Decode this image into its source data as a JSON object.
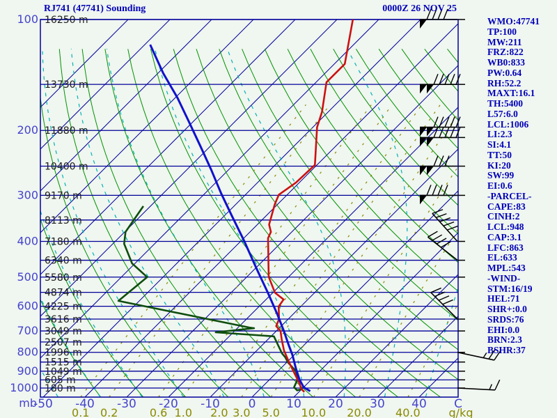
{
  "header": {
    "title": "RJ741 (47741) Sounding",
    "datetime": "0000Z 26 NOV 25"
  },
  "stats_panel": [
    "WMO:47741",
    "TP:100",
    "MW:211",
    "FRZ:822",
    "WB0:833",
    "PW:0.64",
    "RH:52.2",
    "MAXT:16.1",
    "TH:5400",
    "L57:6.0",
    "LCL:1006",
    "LI:2.3",
    "SI:4.1",
    "TT:50",
    "KI:20",
    "SW:99",
    "EI:0.6",
    "-PARCEL-",
    "CAPE:83",
    "CINH:2",
    "LCL:948",
    "CAP:3.1",
    "LFC:863",
    "EL:633",
    "MPL:543",
    "-WIND-",
    "STM:16/19",
    "HEL:71",
    "SHR+:0.0",
    "SRDS:76",
    "EHI:0.0",
    "BRN:2.3",
    "BSHR:37"
  ],
  "colors": {
    "background": "#f0f6f0",
    "isobar_isotherm": "#000099",
    "dry_adiabat": "#009300",
    "moist_adiabat": "#00b3b3",
    "mixing_ratio": "#8a8a00",
    "temperature_curve": "#cc1111",
    "dewpoint_curve": "#0e4d0e",
    "parcel_curve": "#1111cc",
    "wind_barb": "#000000",
    "axis_text": "#4444cc",
    "height_text": "#1b1b1b",
    "header_text": "#0000b8"
  },
  "chart_data": {
    "type": "skew-t-log-p",
    "title": "RJ741 (47741) Sounding",
    "datetime": "0000Z 26 NOV 25",
    "pressure_axis": {
      "unit": "mb",
      "ticks": [
        100,
        200,
        300,
        400,
        500,
        600,
        700,
        800,
        900,
        1000
      ],
      "isobar_lines": {
        "from": 100,
        "to": 1000,
        "step": 50
      },
      "range": [
        100,
        1056
      ]
    },
    "temperature_axis": {
      "unit": "C",
      "ticks": [
        -50,
        -40,
        -30,
        -20,
        -10,
        0,
        10,
        20,
        30,
        40
      ],
      "isotherms": {
        "from": -120,
        "to": 40,
        "step": 10
      }
    },
    "heights": [
      {
        "p": 100,
        "label": "16250 m"
      },
      {
        "p": 150,
        "label": "13730 m"
      },
      {
        "p": 200,
        "label": "11880 m"
      },
      {
        "p": 250,
        "label": "10400 m"
      },
      {
        "p": 300,
        "label": "9170 m"
      },
      {
        "p": 350,
        "label": "8113 m"
      },
      {
        "p": 400,
        "label": "7180 m"
      },
      {
        "p": 450,
        "label": "6340 m"
      },
      {
        "p": 500,
        "label": "5580 m"
      },
      {
        "p": 550,
        "label": "4874 m"
      },
      {
        "p": 600,
        "label": "4225 m"
      },
      {
        "p": 650,
        "label": "3616 m"
      },
      {
        "p": 700,
        "label": "3049 m"
      },
      {
        "p": 750,
        "label": "2507 m"
      },
      {
        "p": 800,
        "label": "1996 m"
      },
      {
        "p": 850,
        "label": "1515 m"
      },
      {
        "p": 900,
        "label": "1049 m"
      },
      {
        "p": 950,
        "label": "605 m"
      },
      {
        "p": 1000,
        "label": "180 m"
      }
    ],
    "mixing_ratio_lines": {
      "unit": "g/kg",
      "values": [
        0.1,
        0.2,
        0.6,
        1.0,
        2.0,
        3.0,
        5.0,
        10.0,
        20.0,
        40.0
      ],
      "labels": [
        "0.1",
        "0.2",
        "0.6",
        "1.0",
        "2.0",
        "3.0",
        "5.0",
        "10.0",
        "20.0",
        "40.0"
      ]
    },
    "dry_adiabats_theta_c": {
      "from": -40,
      "to": 240,
      "step": 10
    },
    "moist_adiabats_thetaw_c": {
      "from": -60,
      "to": 40,
      "step": 10
    },
    "temperature_profile": [
      [
        100,
        -66.2
      ],
      [
        132,
        -57.5
      ],
      [
        148,
        -57.5
      ],
      [
        178,
        -51.5
      ],
      [
        196,
        -49.0
      ],
      [
        248,
        -40.5
      ],
      [
        277,
        -40.8
      ],
      [
        299,
        -42.0
      ],
      [
        317,
        -40.7
      ],
      [
        360,
        -37.2
      ],
      [
        377,
        -35.0
      ],
      [
        392,
        -34.2
      ],
      [
        499,
        -24.8
      ],
      [
        551,
        -19.5
      ],
      [
        575,
        -15.8
      ],
      [
        601,
        -15.3
      ],
      [
        650,
        -12.2
      ],
      [
        679,
        -11.2
      ],
      [
        700,
        -9.0
      ],
      [
        738,
        -6.7
      ],
      [
        791,
        -3.5
      ],
      [
        851,
        0.5
      ],
      [
        916,
        4.7
      ],
      [
        970,
        8.0
      ],
      [
        1005,
        9.8
      ],
      [
        1025,
        11.3
      ]
    ],
    "dewpoint_profile": [
      [
        321,
        -71.7
      ],
      [
        377,
        -69.8
      ],
      [
        406,
        -67.3
      ],
      [
        459,
        -60.7
      ],
      [
        500,
        -53.8
      ],
      [
        580,
        -55.0
      ],
      [
        685,
        -17.3
      ],
      [
        688,
        -16.0
      ],
      [
        706,
        -24.2
      ],
      [
        724,
        -9.3
      ],
      [
        805,
        -3.3
      ],
      [
        826,
        -1.5
      ],
      [
        851,
        0.2
      ],
      [
        900,
        4.3
      ],
      [
        949,
        6.7
      ],
      [
        995,
        7.7
      ],
      [
        1015,
        9.2
      ],
      [
        1007,
        10.0
      ]
    ],
    "parcel_profile": [
      [
        117,
        -108.7
      ],
      [
        140,
        -98.7
      ],
      [
        163,
        -89.5
      ],
      [
        190,
        -80.8
      ],
      [
        221,
        -72.3
      ],
      [
        255,
        -64.3
      ],
      [
        296,
        -56.2
      ],
      [
        341,
        -48.2
      ],
      [
        397,
        -39.5
      ],
      [
        473,
        -29.8
      ],
      [
        551,
        -21.2
      ],
      [
        628,
        -14.0
      ],
      [
        700,
        -8.2
      ],
      [
        764,
        -3.7
      ],
      [
        815,
        -0.3
      ],
      [
        882,
        3.5
      ],
      [
        949,
        7.2
      ],
      [
        995,
        10.0
      ],
      [
        1020,
        12.5
      ]
    ],
    "winds": [
      {
        "p": 100,
        "pennants": 1,
        "full": 4,
        "half": 0,
        "angle": 0,
        "flip": false
      },
      {
        "p": 150,
        "pennants": 2,
        "full": 5,
        "half": 0,
        "angle": 0,
        "flip": false
      },
      {
        "p": 196,
        "pennants": 2,
        "full": 5,
        "half": 0,
        "angle": 0,
        "flip": false
      },
      {
        "p": 209,
        "pennants": 2,
        "full": 5,
        "half": 0,
        "angle": 0,
        "flip": false
      },
      {
        "p": 250,
        "pennants": 2,
        "full": 3,
        "half": 0,
        "angle": 0,
        "flip": false
      },
      {
        "p": 300,
        "pennants": 1,
        "full": 4,
        "half": 0,
        "angle": 0,
        "flip": false
      },
      {
        "p": 400,
        "pennants": 0,
        "full": 5,
        "half": 0,
        "angle": 48,
        "flip": false
      },
      {
        "p": 450,
        "pennants": 0,
        "full": 4,
        "half": 0,
        "angle": 38,
        "flip": false
      },
      {
        "p": 650,
        "pennants": 0,
        "full": 4,
        "half": 0,
        "angle": 45,
        "flip": false
      },
      {
        "p": 800,
        "pennants": 0,
        "full": 2,
        "half": 1,
        "angle": 12,
        "flip": true
      },
      {
        "p": 1000,
        "pennants": 0,
        "full": 1,
        "half": 1,
        "angle": 3,
        "flip": true
      }
    ],
    "right_axis_tick_pressures": [
      100,
      150,
      196,
      209,
      250,
      300,
      400,
      450,
      500,
      650,
      700,
      800,
      850,
      900,
      950,
      1000
    ],
    "axis_unit_labels": {
      "pressure": "mb",
      "temperature": "C",
      "mixing": "g/kg"
    },
    "layout_hints": {
      "grid": "on",
      "skew_deg": 45,
      "stats_panel_position": "right"
    }
  }
}
